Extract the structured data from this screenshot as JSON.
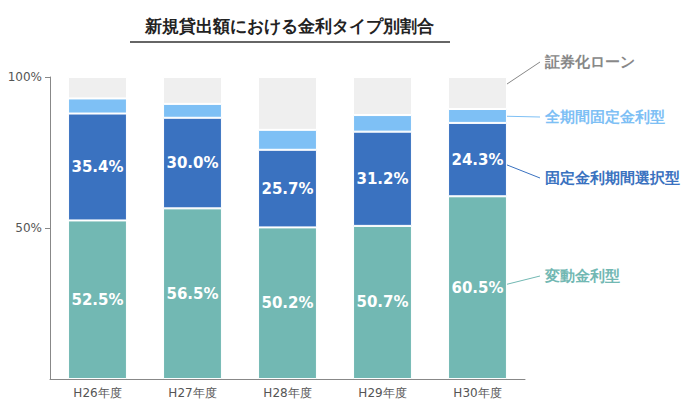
{
  "chart_data": {
    "type": "bar",
    "title": "新規貸出額における金利タイプ別割合",
    "categories": [
      "H26年度",
      "H27年度",
      "H28年度",
      "H29年度",
      "H30年度"
    ],
    "stacked": true,
    "grid": false,
    "ylim": [
      0,
      100
    ],
    "yticks": [
      {
        "value": 50,
        "label": "50%"
      },
      {
        "value": 100,
        "label": "100%"
      }
    ],
    "series": [
      {
        "name": "変動金利型",
        "color": "#72b8b3",
        "values": [
          52.5,
          56.5,
          50.2,
          50.7,
          60.5
        ],
        "value_labels": [
          "52.5%",
          "56.5%",
          "50.2%",
          "50.7%",
          "60.5%"
        ],
        "data_labels": true
      },
      {
        "name": "固定金利期間選択型",
        "color": "#3a72c0",
        "values": [
          35.4,
          30.0,
          25.7,
          31.2,
          24.3
        ],
        "value_labels": [
          "35.4%",
          "30.0%",
          "25.7%",
          "31.2%",
          "24.3%"
        ],
        "data_labels": true
      },
      {
        "name": "全期間固定金利型",
        "color": "#7ec0f5",
        "values": [
          5.0,
          4.6,
          6.6,
          5.5,
          4.6
        ],
        "data_labels": false
      },
      {
        "name": "証券化ローン",
        "color": "#d9d9d9",
        "values": [
          7.1,
          8.9,
          17.5,
          12.6,
          10.6
        ],
        "data_labels": false
      }
    ]
  }
}
